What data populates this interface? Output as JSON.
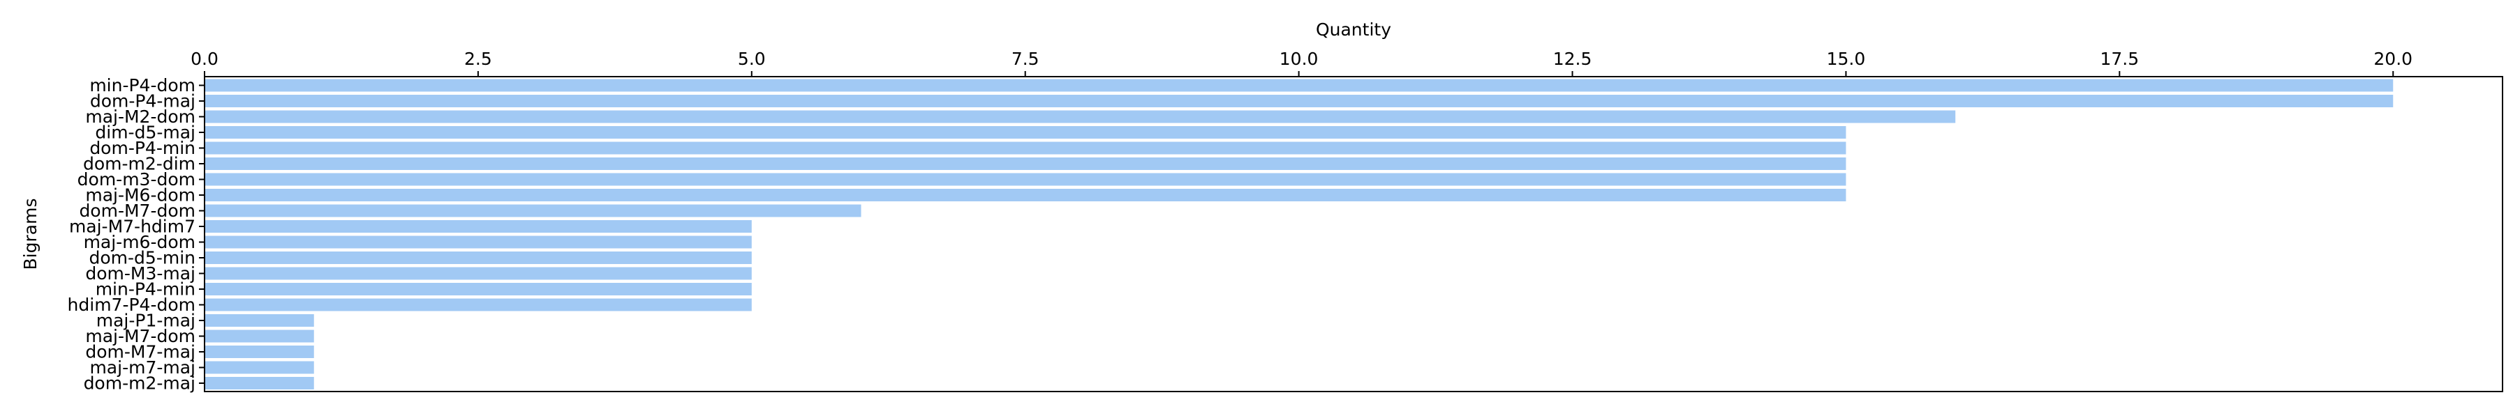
{
  "chart_data": {
    "type": "bar",
    "orientation": "horizontal",
    "xlabel": "Quantity",
    "ylabel": "Bigrams",
    "xlim": [
      0,
      21
    ],
    "x_ticks": [
      "0.0",
      "2.5",
      "5.0",
      "7.5",
      "10.0",
      "12.5",
      "15.0",
      "17.5",
      "20.0"
    ],
    "x_tick_values": [
      0,
      2.5,
      5,
      7.5,
      10,
      12.5,
      15,
      17.5,
      20
    ],
    "x_axis_position": "top",
    "grid": false,
    "bar_color": "#a1c9f4",
    "categories": [
      "min-P4-dom",
      "dom-P4-maj",
      "maj-M2-dom",
      "dim-d5-maj",
      "dom-P4-min",
      "dom-m2-dim",
      "dom-m3-dom",
      "maj-M6-dom",
      "dom-M7-dom",
      "maj-M7-hdim7",
      "maj-m6-dom",
      "dom-d5-min",
      "dom-M3-maj",
      "min-P4-min",
      "hdim7-P4-dom",
      "maj-P1-maj",
      "maj-M7-dom",
      "dom-M7-maj",
      "maj-m7-maj",
      "dom-m2-maj"
    ],
    "values": [
      20,
      20,
      16,
      15,
      15,
      15,
      15,
      15,
      6,
      5,
      5,
      5,
      5,
      5,
      5,
      1,
      1,
      1,
      1,
      1
    ]
  }
}
